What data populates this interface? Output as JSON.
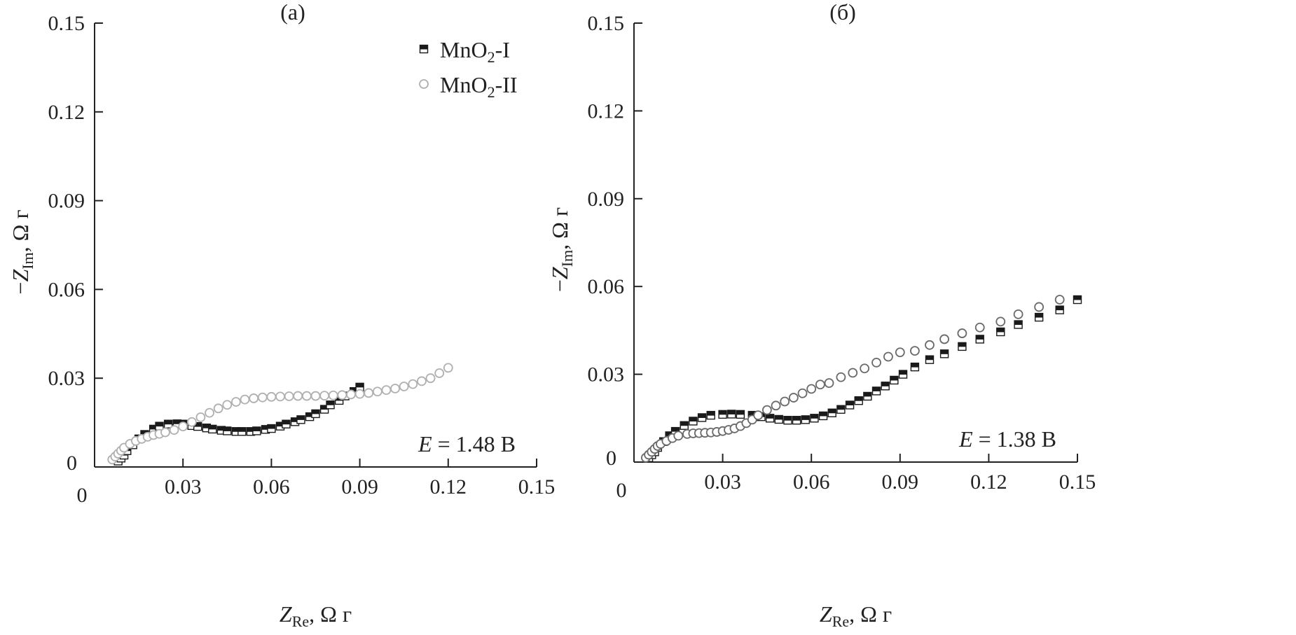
{
  "chart_data": [
    {
      "type": "scatter",
      "title": "(a)",
      "xlabel": {
        "symbol": "Z",
        "sub": "Re",
        "unit": ", Ω г"
      },
      "ylabel": {
        "prefix": "−",
        "symbol": "Z",
        "sub": "Im",
        "unit": ", Ω г"
      },
      "xlim": [
        0,
        0.15
      ],
      "ylim": [
        0,
        0.15
      ],
      "xticks": [
        "0",
        "0.03",
        "0.06",
        "0.09",
        "0.12",
        "0.15"
      ],
      "yticks": [
        "0",
        "0.03",
        "0.06",
        "0.09",
        "0.12",
        "0.15"
      ],
      "grid": false,
      "legend_position": "top-right",
      "annotation": {
        "symbol": "E",
        "text": " = 1.48 В"
      },
      "series": [
        {
          "name": "MnO2-I",
          "label_main": "MnO",
          "label_sub": "2",
          "label_tail": "-I",
          "marker": "half-filled-square",
          "color": "#1a1a1a",
          "x": [
            0.008,
            0.009,
            0.01,
            0.011,
            0.013,
            0.015,
            0.017,
            0.02,
            0.022,
            0.025,
            0.028,
            0.03,
            0.033,
            0.035,
            0.038,
            0.04,
            0.043,
            0.045,
            0.048,
            0.05,
            0.053,
            0.055,
            0.058,
            0.06,
            0.063,
            0.065,
            0.068,
            0.07,
            0.073,
            0.075,
            0.078,
            0.08,
            0.083,
            0.085,
            0.088,
            0.09
          ],
          "y": [
            0.002,
            0.003,
            0.004,
            0.0055,
            0.0075,
            0.0095,
            0.011,
            0.0128,
            0.0138,
            0.0145,
            0.0146,
            0.0145,
            0.014,
            0.0137,
            0.0132,
            0.0128,
            0.0124,
            0.0122,
            0.012,
            0.012,
            0.012,
            0.0122,
            0.0127,
            0.013,
            0.0138,
            0.0145,
            0.0153,
            0.016,
            0.017,
            0.018,
            0.0195,
            0.021,
            0.0225,
            0.024,
            0.0255,
            0.027
          ]
        },
        {
          "name": "MnO2-II",
          "label_main": "MnO",
          "label_sub": "2",
          "label_tail": "-II",
          "marker": "open-circle",
          "color": "#b0b0b0",
          "x": [
            0.006,
            0.007,
            0.008,
            0.009,
            0.01,
            0.012,
            0.014,
            0.016,
            0.018,
            0.02,
            0.022,
            0.024,
            0.027,
            0.03,
            0.033,
            0.036,
            0.039,
            0.042,
            0.045,
            0.048,
            0.051,
            0.054,
            0.057,
            0.06,
            0.063,
            0.066,
            0.069,
            0.072,
            0.075,
            0.078,
            0.081,
            0.084,
            0.087,
            0.09,
            0.093,
            0.096,
            0.099,
            0.102,
            0.105,
            0.108,
            0.111,
            0.114,
            0.117,
            0.12
          ],
          "y": [
            0.0025,
            0.0035,
            0.0045,
            0.0055,
            0.0065,
            0.0078,
            0.0088,
            0.0095,
            0.0102,
            0.0108,
            0.0112,
            0.0117,
            0.0125,
            0.0137,
            0.0152,
            0.0168,
            0.0183,
            0.0198,
            0.021,
            0.022,
            0.0228,
            0.0232,
            0.0235,
            0.0237,
            0.0238,
            0.0239,
            0.024,
            0.024,
            0.024,
            0.0241,
            0.0242,
            0.0243,
            0.0245,
            0.0247,
            0.025,
            0.0255,
            0.026,
            0.0265,
            0.0272,
            0.028,
            0.029,
            0.03,
            0.0317,
            0.0335
          ]
        }
      ]
    },
    {
      "type": "scatter",
      "title": "(б)",
      "xlabel": {
        "symbol": "Z",
        "sub": "Re",
        "unit": ", Ω г"
      },
      "ylabel": {
        "prefix": "−",
        "symbol": "Z",
        "sub": "Im",
        "unit": ", Ω г"
      },
      "xlim": [
        0,
        0.15
      ],
      "ylim": [
        0,
        0.15
      ],
      "xticks": [
        "0",
        "0.03",
        "0.06",
        "0.09",
        "0.12",
        "0.15"
      ],
      "yticks": [
        "0",
        "0.03",
        "0.06",
        "0.09",
        "0.12",
        "0.15"
      ],
      "grid": false,
      "annotation": {
        "symbol": "E",
        "text": " = 1.38 В"
      },
      "series": [
        {
          "name": "MnO2-I",
          "marker": "half-filled-square",
          "color": "#1a1a1a",
          "x": [
            0.005,
            0.006,
            0.007,
            0.008,
            0.01,
            0.012,
            0.014,
            0.017,
            0.02,
            0.023,
            0.026,
            0.03,
            0.033,
            0.036,
            0.04,
            0.043,
            0.046,
            0.049,
            0.052,
            0.055,
            0.058,
            0.061,
            0.064,
            0.067,
            0.07,
            0.073,
            0.076,
            0.079,
            0.082,
            0.085,
            0.088,
            0.091,
            0.095,
            0.1,
            0.105,
            0.111,
            0.117,
            0.124,
            0.13,
            0.137,
            0.144,
            0.15
          ],
          "y": [
            0.0015,
            0.0025,
            0.0035,
            0.005,
            0.007,
            0.009,
            0.0105,
            0.0125,
            0.014,
            0.0152,
            0.016,
            0.0163,
            0.0164,
            0.0163,
            0.016,
            0.0155,
            0.015,
            0.0146,
            0.0143,
            0.0143,
            0.0145,
            0.015,
            0.0158,
            0.0168,
            0.018,
            0.0195,
            0.021,
            0.0225,
            0.0243,
            0.026,
            0.028,
            0.03,
            0.0325,
            0.035,
            0.037,
            0.0395,
            0.042,
            0.0445,
            0.047,
            0.0495,
            0.052,
            0.0555
          ]
        },
        {
          "name": "MnO2-II",
          "marker": "open-circle",
          "color": "#6a6a6a",
          "x": [
            0.004,
            0.005,
            0.006,
            0.007,
            0.008,
            0.009,
            0.011,
            0.013,
            0.015,
            0.018,
            0.02,
            0.022,
            0.024,
            0.026,
            0.028,
            0.03,
            0.032,
            0.034,
            0.036,
            0.038,
            0.04,
            0.042,
            0.045,
            0.048,
            0.051,
            0.054,
            0.057,
            0.06,
            0.063,
            0.066,
            0.07,
            0.074,
            0.078,
            0.082,
            0.086,
            0.09,
            0.095,
            0.1,
            0.105,
            0.111,
            0.117,
            0.124,
            0.13,
            0.137,
            0.144
          ],
          "y": [
            0.0015,
            0.0025,
            0.0035,
            0.0045,
            0.0055,
            0.0062,
            0.0072,
            0.0082,
            0.009,
            0.0096,
            0.0098,
            0.0099,
            0.01,
            0.0101,
            0.0103,
            0.0106,
            0.011,
            0.0115,
            0.0123,
            0.0133,
            0.0145,
            0.016,
            0.0178,
            0.0193,
            0.0207,
            0.022,
            0.0235,
            0.025,
            0.0265,
            0.027,
            0.029,
            0.0305,
            0.032,
            0.034,
            0.036,
            0.0375,
            0.038,
            0.04,
            0.042,
            0.044,
            0.046,
            0.048,
            0.0505,
            0.053,
            0.0555
          ]
        }
      ]
    }
  ]
}
